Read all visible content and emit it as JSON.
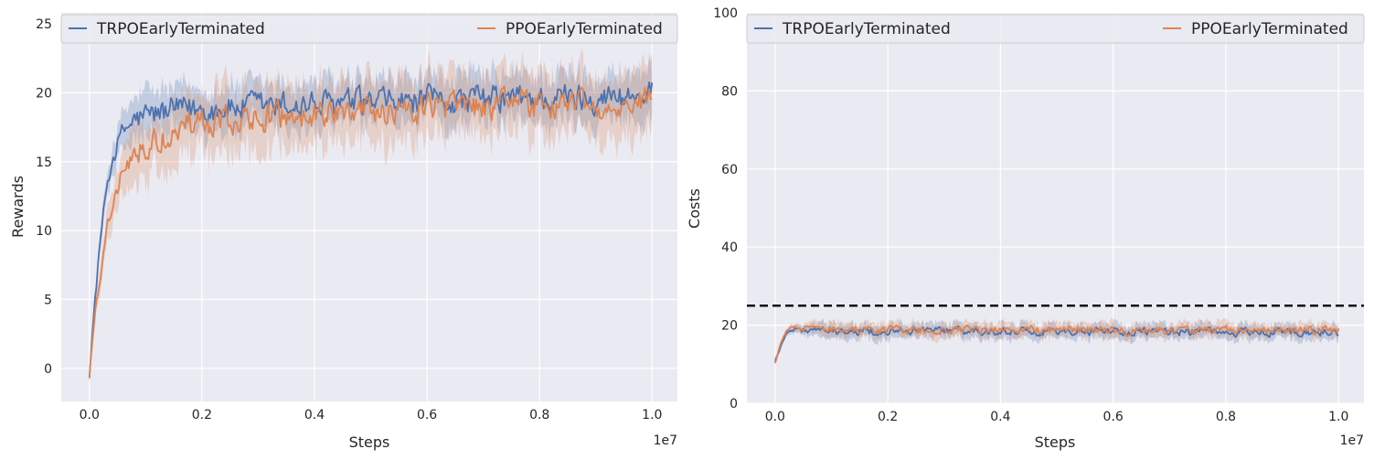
{
  "chart_data": [
    {
      "type": "line",
      "xlabel": "Steps",
      "ylabel": "Rewards",
      "x_offset_label": "1e7",
      "xlim": [
        -0.05,
        1.045
      ],
      "ylim": [
        -2.4,
        25.8
      ],
      "x_ticks": [
        0.0,
        0.2,
        0.4,
        0.6,
        0.8,
        1.0
      ],
      "x_tick_labels": [
        "0.0",
        "0.2",
        "0.4",
        "0.6",
        "0.8",
        "1.0"
      ],
      "y_ticks": [
        0,
        5,
        10,
        15,
        20,
        25
      ],
      "y_tick_labels": [
        "0",
        "5",
        "10",
        "15",
        "20",
        "25"
      ],
      "grid": true,
      "legend_position": "top",
      "series": [
        {
          "name": "TRPOEarlyTerminated",
          "color": "#4c72b0",
          "x": [
            0.0,
            0.01,
            0.02,
            0.03,
            0.04,
            0.05,
            0.06,
            0.08,
            0.1,
            0.12,
            0.15,
            0.2,
            0.25,
            0.3,
            0.4,
            0.5,
            0.6,
            0.7,
            0.8,
            0.9,
            1.0
          ],
          "y": [
            -0.5,
            5.0,
            9.5,
            13.0,
            15.0,
            16.3,
            17.2,
            18.0,
            18.3,
            18.5,
            18.7,
            18.8,
            18.9,
            19.0,
            19.1,
            19.2,
            19.4,
            19.5,
            19.6,
            19.7,
            19.8
          ],
          "noise": 1.0,
          "band": 1.6
        },
        {
          "name": "PPOEarlyTerminated",
          "color": "#dd8452",
          "x": [
            0.0,
            0.01,
            0.02,
            0.03,
            0.04,
            0.05,
            0.06,
            0.08,
            0.1,
            0.12,
            0.15,
            0.2,
            0.25,
            0.3,
            0.4,
            0.5,
            0.6,
            0.7,
            0.8,
            0.9,
            1.0
          ],
          "y": [
            -0.5,
            4.0,
            7.0,
            10.0,
            12.0,
            13.2,
            14.2,
            15.5,
            16.3,
            16.8,
            17.3,
            17.8,
            18.0,
            18.2,
            18.4,
            18.6,
            18.8,
            19.0,
            19.1,
            19.2,
            19.3
          ],
          "noise": 1.0,
          "band": 2.2
        }
      ]
    },
    {
      "type": "line",
      "xlabel": "Steps",
      "ylabel": "Costs",
      "x_offset_label": "1e7",
      "xlim": [
        -0.05,
        1.045
      ],
      "ylim": [
        0,
        100
      ],
      "x_ticks": [
        0.0,
        0.2,
        0.4,
        0.6,
        0.8,
        1.0
      ],
      "x_tick_labels": [
        "0.0",
        "0.2",
        "0.4",
        "0.6",
        "0.8",
        "1.0"
      ],
      "y_ticks": [
        0,
        20,
        40,
        60,
        80,
        100
      ],
      "y_tick_labels": [
        "0",
        "20",
        "40",
        "60",
        "80",
        "100"
      ],
      "grid": true,
      "legend_position": "top",
      "threshold": {
        "value": 25,
        "color": "#111111",
        "style": "dashed"
      },
      "series": [
        {
          "name": "TRPOEarlyTerminated",
          "color": "#4c72b0",
          "x": [
            0.0,
            0.01,
            0.02,
            0.03,
            0.05,
            0.1,
            0.2,
            0.4,
            0.6,
            0.8,
            1.0
          ],
          "y": [
            11.0,
            14.5,
            17.5,
            19.0,
            18.7,
            18.5,
            18.5,
            18.4,
            18.3,
            18.3,
            18.2
          ],
          "noise": 1.0,
          "band": 1.8
        },
        {
          "name": "PPOEarlyTerminated",
          "color": "#dd8452",
          "x": [
            0.0,
            0.01,
            0.02,
            0.03,
            0.05,
            0.1,
            0.2,
            0.4,
            0.6,
            0.8,
            1.0
          ],
          "y": [
            10.5,
            15.0,
            18.5,
            19.5,
            19.2,
            19.0,
            18.8,
            18.7,
            18.8,
            18.9,
            18.8
          ],
          "noise": 1.0,
          "band": 1.8
        }
      ]
    }
  ]
}
